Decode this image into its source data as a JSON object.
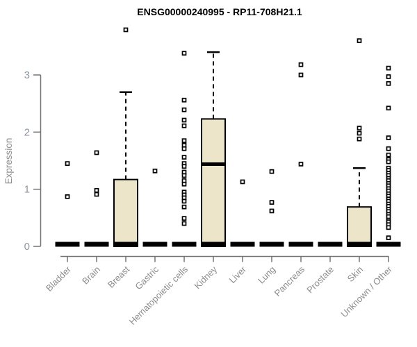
{
  "chart_data": {
    "type": "boxplot",
    "title": "ENSG00000240995 - RP11-708H21.1",
    "ylabel": "Expression",
    "xlabel": "",
    "yticks": [
      0,
      1,
      2,
      3
    ],
    "ylim": [
      0,
      3.9
    ],
    "grid": false,
    "legend": "none",
    "categories": [
      "Bladder",
      "Brain",
      "Breast",
      "Gastric",
      "Hematopoietic cells",
      "Kidney",
      "Liver",
      "Lung",
      "Pancreas",
      "Prostate",
      "Skin",
      "Unknown / Other"
    ],
    "series": [
      {
        "category": "Bladder",
        "q1": 0,
        "median": 0,
        "q3": 0,
        "whisker_low": 0,
        "whisker_high": 0,
        "outliers": [
          1.45,
          0.87
        ]
      },
      {
        "category": "Brain",
        "q1": 0,
        "median": 0,
        "q3": 0,
        "whisker_low": 0,
        "whisker_high": 0,
        "outliers": [
          1.64,
          0.98,
          0.91
        ]
      },
      {
        "category": "Breast",
        "q1": 0,
        "median": 0,
        "q3": 1.17,
        "whisker_low": 0,
        "whisker_high": 2.7,
        "outliers": [
          3.79
        ]
      },
      {
        "category": "Gastric",
        "q1": 0,
        "median": 0,
        "q3": 0,
        "whisker_low": 0,
        "whisker_high": 0,
        "outliers": [
          1.32
        ]
      },
      {
        "category": "Hematopoietic cells",
        "q1": 0,
        "median": 0,
        "q3": 0,
        "whisker_low": 0,
        "whisker_high": 0,
        "outliers": [
          3.38,
          2.56,
          2.39,
          2.21,
          2.11,
          1.85,
          1.77,
          1.71,
          1.56,
          1.45,
          1.4,
          1.3,
          1.24,
          1.15,
          1.09,
          0.95,
          0.9,
          0.85,
          0.79,
          0.69,
          0.49,
          0.4
        ]
      },
      {
        "category": "Kidney",
        "q1": 0,
        "median": 1.44,
        "q3": 2.23,
        "whisker_low": 0,
        "whisker_high": 3.4,
        "outliers": []
      },
      {
        "category": "Liver",
        "q1": 0,
        "median": 0,
        "q3": 0,
        "whisker_low": 0,
        "whisker_high": 0,
        "outliers": [
          1.13
        ]
      },
      {
        "category": "Lung",
        "q1": 0,
        "median": 0,
        "q3": 0,
        "whisker_low": 0,
        "whisker_high": 0,
        "outliers": [
          1.31,
          0.77,
          0.62
        ]
      },
      {
        "category": "Pancreas",
        "q1": 0,
        "median": 0,
        "q3": 0,
        "whisker_low": 0,
        "whisker_high": 0,
        "outliers": [
          3.18,
          3.0,
          1.44
        ]
      },
      {
        "category": "Prostate",
        "q1": 0,
        "median": 0,
        "q3": 0,
        "whisker_low": 0,
        "whisker_high": 0,
        "outliers": []
      },
      {
        "category": "Skin",
        "q1": 0,
        "median": 0,
        "q3": 0.69,
        "whisker_low": 0,
        "whisker_high": 1.37,
        "outliers": [
          3.6,
          2.07,
          1.98,
          1.88
        ]
      },
      {
        "category": "Unknown / Other",
        "q1": 0,
        "median": 0,
        "q3": 0,
        "whisker_low": 0,
        "whisker_high": 0,
        "outliers": [
          3.12,
          2.97,
          2.85,
          2.42,
          1.9,
          1.71,
          1.6,
          1.52,
          1.48,
          1.37,
          1.33,
          1.28,
          1.24,
          1.19,
          1.15,
          1.1,
          1.06,
          1.01,
          0.97,
          0.92,
          0.88,
          0.83,
          0.79,
          0.74,
          0.7,
          0.65,
          0.61,
          0.56,
          0.52,
          0.46,
          0.43,
          0.38,
          0.33,
          0.15
        ]
      }
    ],
    "colors": {
      "box_fill": "#ece5c9",
      "box_border": "#000000",
      "median": "#000000",
      "zero_bar": "#000000",
      "outlier_stroke": "#000000",
      "outlier_fill": "#ffffff",
      "axis_line": "#737373",
      "axis_text": "#8c8c8c",
      "title_text": "#000000"
    }
  }
}
